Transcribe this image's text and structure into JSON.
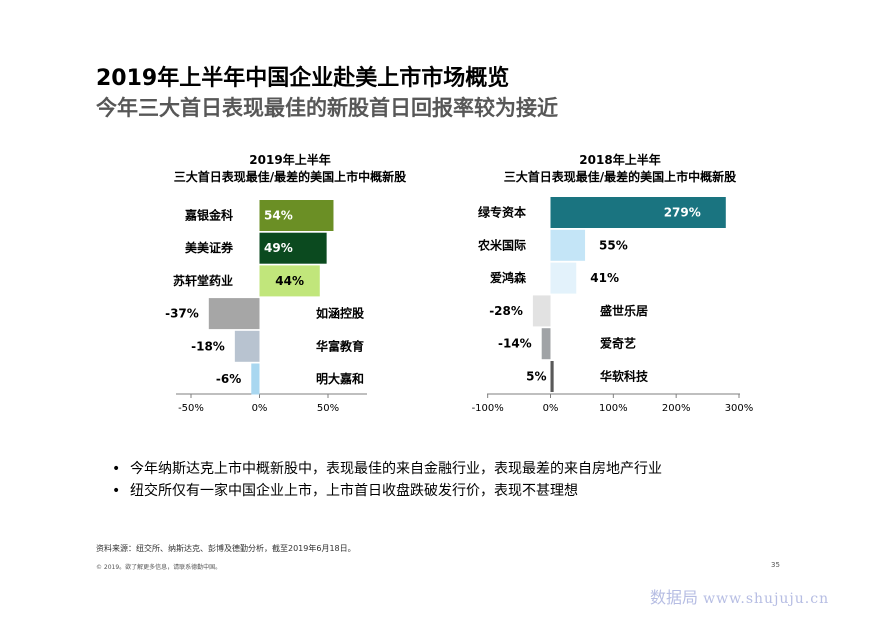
{
  "page": {
    "title": "2019年上半年中国企业赴美上市市场概览",
    "subtitle": "今年三大首日表现最佳的新股首日回报率较为接近"
  },
  "chart_data": [
    {
      "type": "bar",
      "orientation": "horizontal",
      "title_line1": "2019年上半年",
      "title_line2": "三大首日表现最佳/最差的美国上市中概新股",
      "categories": [
        "嘉银金科",
        "美美证券",
        "苏轩堂药业",
        "如涵控股",
        "华富教育",
        "明大嘉和"
      ],
      "values": [
        54,
        49,
        44,
        -37,
        -18,
        -6
      ],
      "value_labels": [
        "54%",
        "49%",
        "44%",
        "-37%",
        "-18%",
        "-6%"
      ],
      "bar_colors": [
        "#6b8f25",
        "#0b4a1f",
        "#c1e67b",
        "#a6a6a6",
        "#b8c3d0",
        "#a9d7f0"
      ],
      "label_colors": [
        "#ffffff",
        "#ffffff",
        "#000000",
        "#000000",
        "#000000",
        "#000000"
      ],
      "xlim": [
        -50,
        100
      ],
      "xticks": [
        -50,
        0,
        50
      ],
      "xtick_labels": [
        "-50%",
        "0%",
        "50%"
      ]
    },
    {
      "type": "bar",
      "orientation": "horizontal",
      "title_line1": "2018年上半年",
      "title_line2": "三大首日表现最佳/最差的美国上市中概新股",
      "categories": [
        "绿专资本",
        "农米国际",
        "爱鸿森",
        "盛世乐居",
        "爱奇艺",
        "华软科技"
      ],
      "values": [
        279,
        55,
        41,
        -28,
        -14,
        5
      ],
      "value_labels": [
        "279%",
        "55%",
        "41%",
        "-28%",
        "-14%",
        "5%"
      ],
      "bar_colors": [
        "#1a7480",
        "#c4e5f7",
        "#e3f2fb",
        "#e2e2e2",
        "#a0a3a6",
        "#595959"
      ],
      "label_colors": [
        "#ffffff",
        "#000000",
        "#000000",
        "#000000",
        "#000000",
        "#000000"
      ],
      "xlim": [
        -100,
        300
      ],
      "xticks": [
        -100,
        0,
        100,
        200,
        300
      ],
      "xtick_labels": [
        "-100%",
        "0%",
        "100%",
        "200%",
        "300%"
      ]
    }
  ],
  "bullets": [
    "今年纳斯达克上市中概新股中，表现最佳的来自金融行业，表现最差的来自房地产行业",
    "纽交所仅有一家中国企业上市，上市首日收盘跌破发行价，表现不甚理想"
  ],
  "footer": {
    "source": "资料来源：纽交所、纳斯达克、彭博及德勤分析，截至2019年6月18日。",
    "copyright": "© 2019。欲了解更多信息，请联系德勤中国。",
    "page_number": "35"
  },
  "watermark": {
    "text": "数据局",
    "url": "www.shujuju.cn"
  }
}
